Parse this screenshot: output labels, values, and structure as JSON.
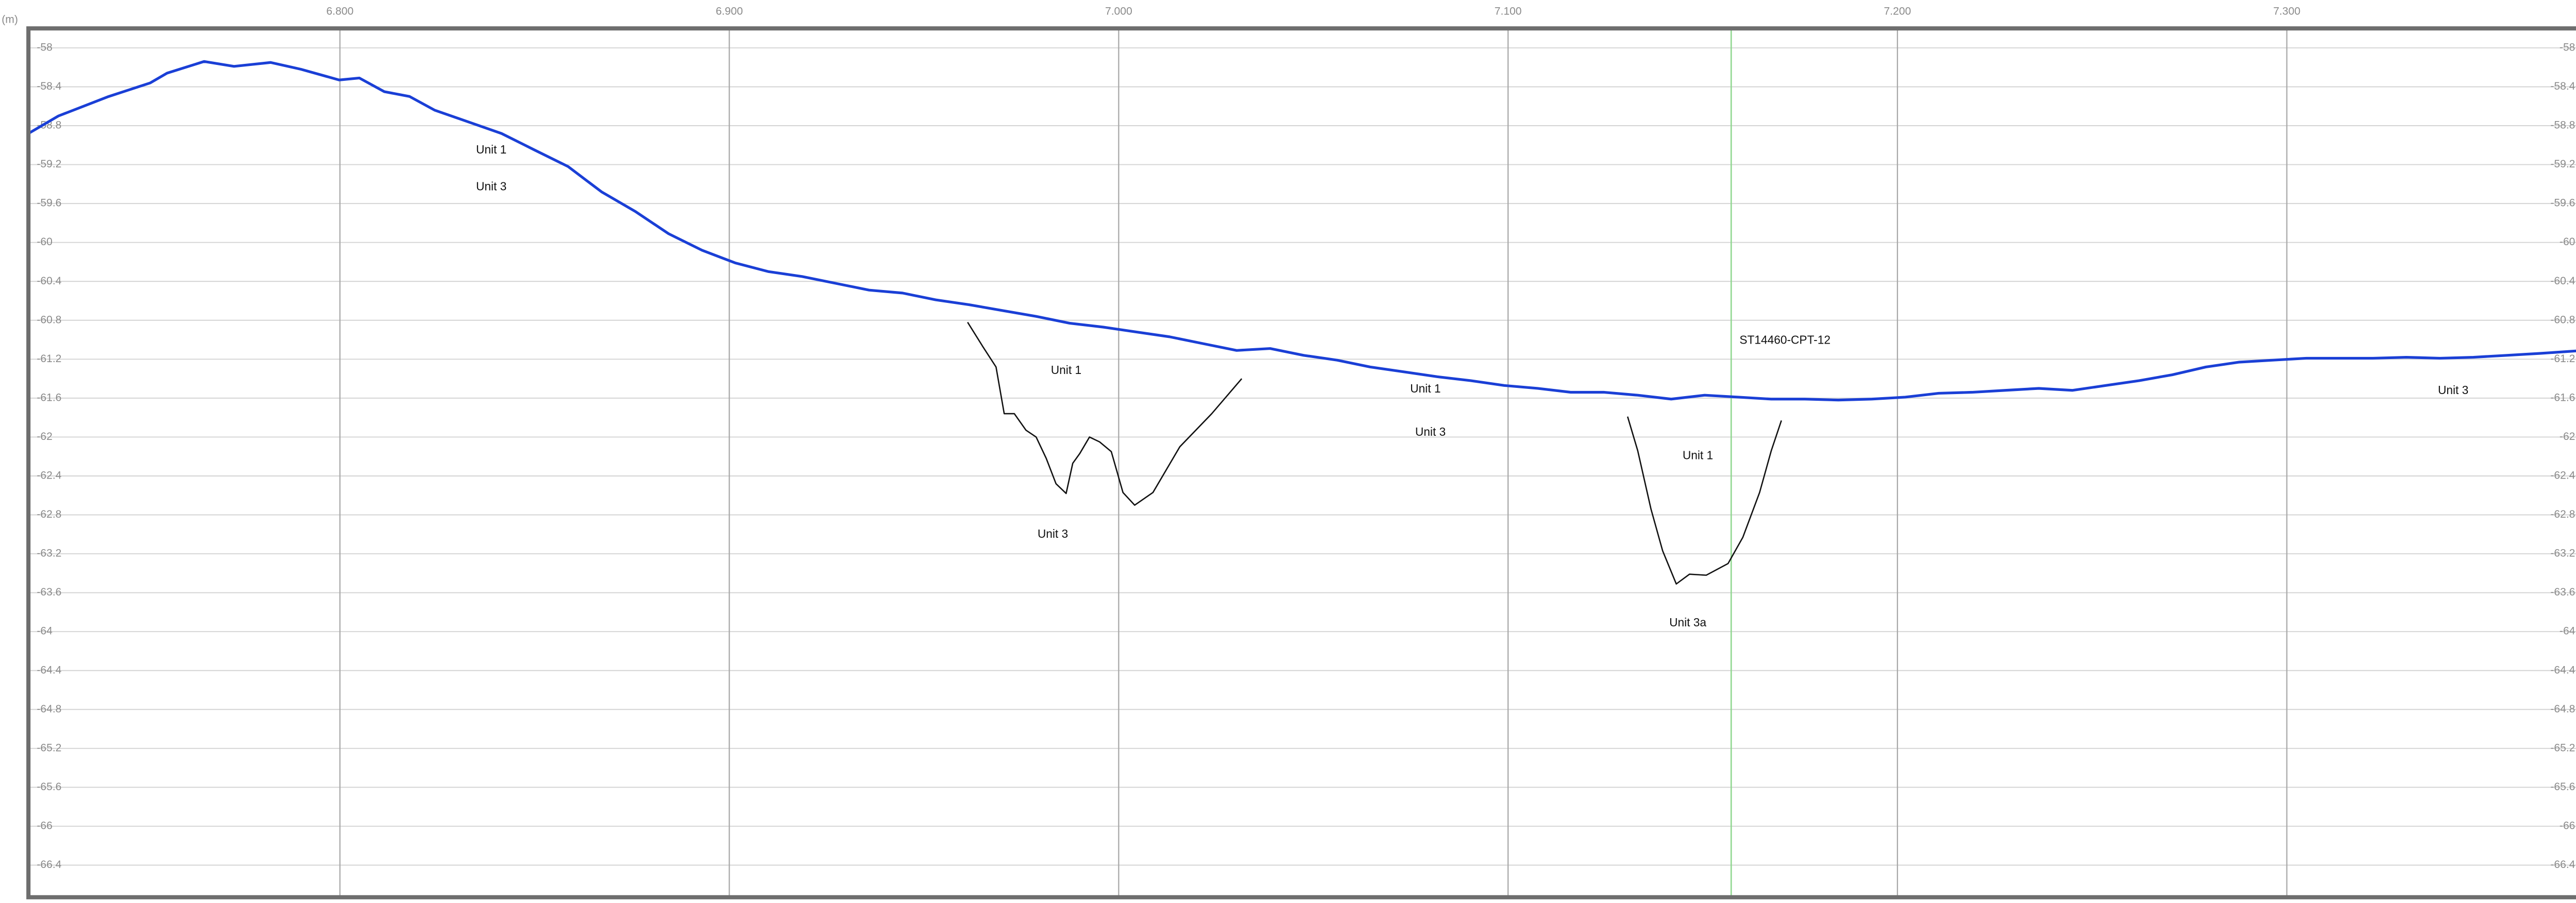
{
  "chart_data": {
    "type": "line",
    "y_label": "(m)",
    "xlim": [
      6.72,
      7.3762
    ],
    "ylim": [
      -57.8,
      -66.73
    ],
    "xticks": [
      {
        "value": 6.8,
        "label": "6.800"
      },
      {
        "value": 6.9,
        "label": "6.900"
      },
      {
        "value": 7.0,
        "label": "7.000"
      },
      {
        "value": 7.1,
        "label": "7.100"
      },
      {
        "value": 7.2,
        "label": "7.200"
      },
      {
        "value": 7.3,
        "label": "7.300"
      }
    ],
    "yticks": [
      -58,
      -58.4,
      -58.8,
      -59.2,
      -59.6,
      -60,
      -60.4,
      -60.8,
      -61.2,
      -61.6,
      -62,
      -62.4,
      -62.8,
      -63.2,
      -63.6,
      -64,
      -64.4,
      -64.8,
      -65.2,
      -65.6,
      -66,
      -66.4
    ],
    "grid": true,
    "series": [
      {
        "color": "#1a3fd6",
        "x": [
          6.72,
          6.7277,
          6.7406,
          6.7513,
          6.7556,
          6.7651,
          6.7728,
          6.7822,
          6.79,
          6.7998,
          6.805,
          6.8114,
          6.8179,
          6.8243,
          6.8329,
          6.8415,
          6.85,
          6.8586,
          6.8672,
          6.8758,
          6.8844,
          6.893,
          6.9015,
          6.9101,
          6.9187,
          6.9273,
          6.9359,
          6.9445,
          6.953,
          6.9616,
          6.9702,
          6.9788,
          6.9874,
          6.996,
          7.0045,
          7.0131,
          7.0217,
          7.0303,
          7.0389,
          7.0475,
          7.0561,
          7.0646,
          7.0732,
          7.0818,
          7.0904,
          7.099,
          7.1076,
          7.1161,
          7.1247,
          7.1333,
          7.1419,
          7.1505,
          7.1591,
          7.1676,
          7.1762,
          7.1848,
          7.1934,
          7.202,
          7.2106,
          7.2191,
          7.2277,
          7.2363,
          7.2449,
          7.2535,
          7.2621,
          7.2706,
          7.2792,
          7.2878,
          7.2964,
          7.305,
          7.3136,
          7.3221,
          7.3307,
          7.3393,
          7.3479,
          7.3565,
          7.3651,
          7.3762
        ],
        "values": [
          -58.88,
          -58.7,
          -58.5,
          -58.36,
          -58.26,
          -58.14,
          -58.19,
          -58.15,
          -58.22,
          -58.33,
          -58.31,
          -58.45,
          -58.5,
          -58.64,
          -58.76,
          -58.88,
          -59.05,
          -59.22,
          -59.48,
          -59.68,
          -59.91,
          -60.08,
          -60.21,
          -60.3,
          -60.35,
          -60.42,
          -60.49,
          -60.52,
          -60.59,
          -60.64,
          -60.7,
          -60.76,
          -60.83,
          -60.87,
          -60.92,
          -60.97,
          -61.04,
          -61.11,
          -61.09,
          -61.16,
          -61.21,
          -61.28,
          -61.33,
          -61.38,
          -61.42,
          -61.47,
          -61.5,
          -61.54,
          -61.54,
          -61.57,
          -61.61,
          -61.57,
          -61.59,
          -61.61,
          -61.61,
          -61.62,
          -61.61,
          -61.59,
          -61.55,
          -61.54,
          -61.52,
          -61.5,
          -61.52,
          -61.47,
          -61.42,
          -61.36,
          -61.28,
          -61.23,
          -61.21,
          -61.19,
          -61.19,
          -61.19,
          -61.18,
          -61.19,
          -61.18,
          -61.16,
          -61.14,
          -61.11
        ]
      },
      {
        "color": "#111111",
        "x": [
          6.9612,
          6.9651,
          6.9685,
          6.9706,
          6.9732,
          6.9762,
          6.9788,
          6.9814,
          6.9839,
          6.9865,
          6.9882,
          6.99,
          6.9925,
          6.9951,
          6.9981,
          7.0011,
          7.0041,
          7.0088,
          7.0157,
          7.0239,
          7.0316
        ],
        "values": [
          -60.82,
          -61.07,
          -61.28,
          -61.76,
          -61.76,
          -61.93,
          -62.0,
          -62.22,
          -62.48,
          -62.58,
          -62.27,
          -62.17,
          -62.0,
          -62.05,
          -62.15,
          -62.57,
          -62.7,
          -62.57,
          -62.1,
          -61.76,
          -61.4
        ]
      },
      {
        "color": "#111111",
        "x": [
          7.1307,
          7.1333,
          7.1367,
          7.1397,
          7.1432,
          7.1466,
          7.1509,
          7.1565,
          7.1603,
          7.1646,
          7.1676,
          7.1702
        ],
        "values": [
          -61.79,
          -62.14,
          -62.74,
          -63.17,
          -63.51,
          -63.41,
          -63.42,
          -63.3,
          -63.03,
          -62.57,
          -62.14,
          -61.83
        ]
      }
    ],
    "vlines": [
      {
        "x": 7.1573,
        "color": "#8fd68f",
        "label": "ST14460-CPT-12"
      }
    ],
    "annotations": [
      "Unit 1",
      "Unit 3",
      "Unit 1",
      "Unit 3",
      "Unit 1",
      "Unit 3",
      "Unit 1",
      "Unit 3a",
      "Unit 3"
    ]
  }
}
